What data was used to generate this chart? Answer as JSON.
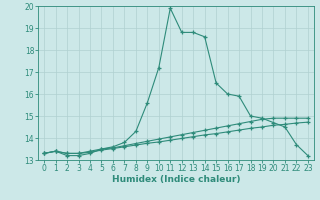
{
  "xlabel": "Humidex (Indice chaleur)",
  "x": [
    0,
    1,
    2,
    3,
    4,
    5,
    6,
    7,
    8,
    9,
    10,
    11,
    12,
    13,
    14,
    15,
    16,
    17,
    18,
    19,
    20,
    21,
    22,
    23
  ],
  "line1": [
    13.3,
    13.4,
    13.2,
    13.2,
    13.3,
    13.5,
    13.6,
    13.8,
    14.3,
    15.6,
    17.2,
    19.9,
    18.8,
    18.8,
    18.6,
    16.5,
    16.0,
    15.9,
    15.0,
    14.9,
    14.7,
    14.5,
    13.7,
    13.2
  ],
  "line2": [
    13.3,
    13.4,
    13.3,
    13.3,
    13.4,
    13.5,
    13.55,
    13.65,
    13.75,
    13.85,
    13.95,
    14.05,
    14.15,
    14.25,
    14.35,
    14.45,
    14.55,
    14.65,
    14.75,
    14.85,
    14.9,
    14.9,
    14.9,
    14.9
  ],
  "line3": [
    13.3,
    13.4,
    13.3,
    13.3,
    13.35,
    13.45,
    13.52,
    13.6,
    13.68,
    13.76,
    13.82,
    13.9,
    13.98,
    14.06,
    14.14,
    14.2,
    14.28,
    14.36,
    14.44,
    14.5,
    14.58,
    14.62,
    14.68,
    14.72
  ],
  "line_color": "#2e8b7a",
  "bg_color": "#cce8e8",
  "grid_color": "#b0d0d0",
  "ylim": [
    13,
    20
  ],
  "xlim": [
    -0.5,
    23.5
  ],
  "yticks": [
    13,
    14,
    15,
    16,
    17,
    18,
    19,
    20
  ],
  "xticks": [
    0,
    1,
    2,
    3,
    4,
    5,
    6,
    7,
    8,
    9,
    10,
    11,
    12,
    13,
    14,
    15,
    16,
    17,
    18,
    19,
    20,
    21,
    22,
    23
  ]
}
